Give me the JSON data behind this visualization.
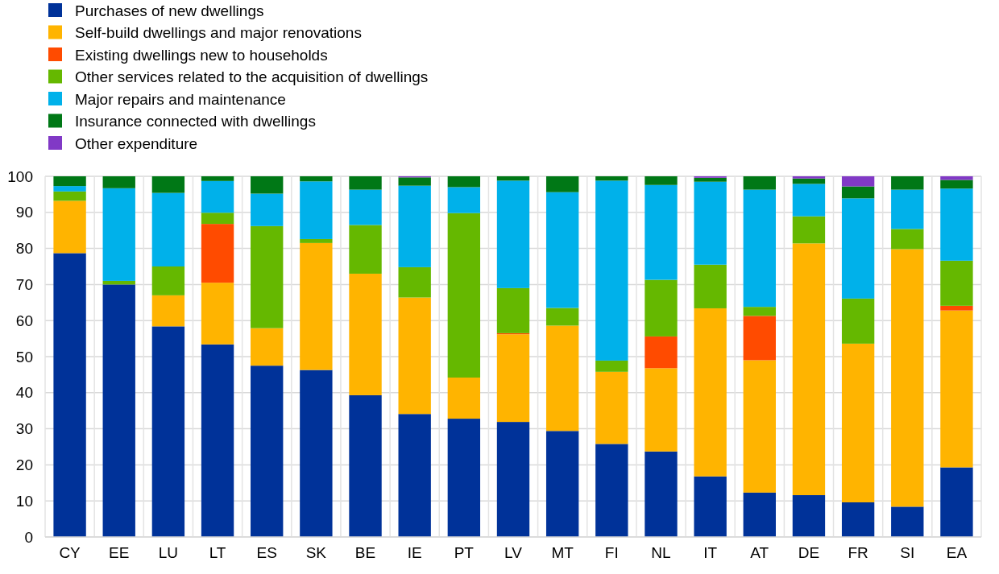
{
  "chart_data": {
    "type": "bar",
    "stacked": true,
    "categories": [
      "CY",
      "EE",
      "LU",
      "LT",
      "ES",
      "SK",
      "BE",
      "IE",
      "PT",
      "LV",
      "MT",
      "FI",
      "NL",
      "IT",
      "AT",
      "DE",
      "FR",
      "SI",
      "EA"
    ],
    "series": [
      {
        "name": "Purchases of new dwellings",
        "color": "#003299",
        "values": [
          78.7,
          70.0,
          58.4,
          53.4,
          47.5,
          46.3,
          39.3,
          34.1,
          32.8,
          31.9,
          29.4,
          25.8,
          23.7,
          16.8,
          12.3,
          11.6,
          9.6,
          8.4,
          19.3
        ]
      },
      {
        "name": "Self-build dwellings and major renovations",
        "color": "#ffb400",
        "values": [
          14.5,
          0,
          8.6,
          17.1,
          10.4,
          35.2,
          33.7,
          32.3,
          11.4,
          24.3,
          29.2,
          20.0,
          23.1,
          46.6,
          36.7,
          69.8,
          44.0,
          71.4,
          43.5
        ]
      },
      {
        "name": "Existing dwellings new to households",
        "color": "#ff4b00",
        "values": [
          0,
          0,
          0,
          16.3,
          0,
          0,
          0,
          0,
          0,
          0.3,
          0,
          0,
          8.8,
          0,
          12.3,
          0,
          0,
          0,
          1.3
        ]
      },
      {
        "name": "Other services related to the acquisition of dwellings",
        "color": "#65b800",
        "values": [
          2.6,
          1.0,
          8.0,
          3.1,
          28.3,
          1.1,
          13.5,
          8.4,
          45.6,
          12.5,
          4.9,
          3.1,
          15.7,
          12.1,
          2.5,
          7.5,
          12.5,
          5.6,
          12.5
        ]
      },
      {
        "name": "Major repairs and maintenance",
        "color": "#00b1ea",
        "values": [
          1.5,
          25.7,
          20.4,
          8.8,
          9.0,
          16.0,
          9.8,
          22.6,
          7.2,
          29.8,
          32.1,
          49.9,
          26.3,
          23.0,
          32.5,
          9.0,
          27.8,
          10.9,
          20.0
        ]
      },
      {
        "name": "Insurance connected with dwellings",
        "color": "#007816",
        "values": [
          2.7,
          3.3,
          4.6,
          1.3,
          4.8,
          1.4,
          3.7,
          2.3,
          3.0,
          1.2,
          4.4,
          1.2,
          2.4,
          1.1,
          3.7,
          1.5,
          3.3,
          3.7,
          2.4
        ]
      },
      {
        "name": "Other expenditure",
        "color": "#8139c6",
        "values": [
          0,
          0,
          0,
          0,
          0,
          0,
          0,
          0.3,
          0,
          0,
          0,
          0,
          0,
          0.4,
          0,
          0.6,
          2.8,
          0,
          1.0
        ]
      }
    ],
    "ylim": [
      0,
      100
    ],
    "yticks": [
      0,
      10,
      20,
      30,
      40,
      50,
      60,
      70,
      80,
      90,
      100
    ],
    "grid": true,
    "legend": "top left"
  }
}
